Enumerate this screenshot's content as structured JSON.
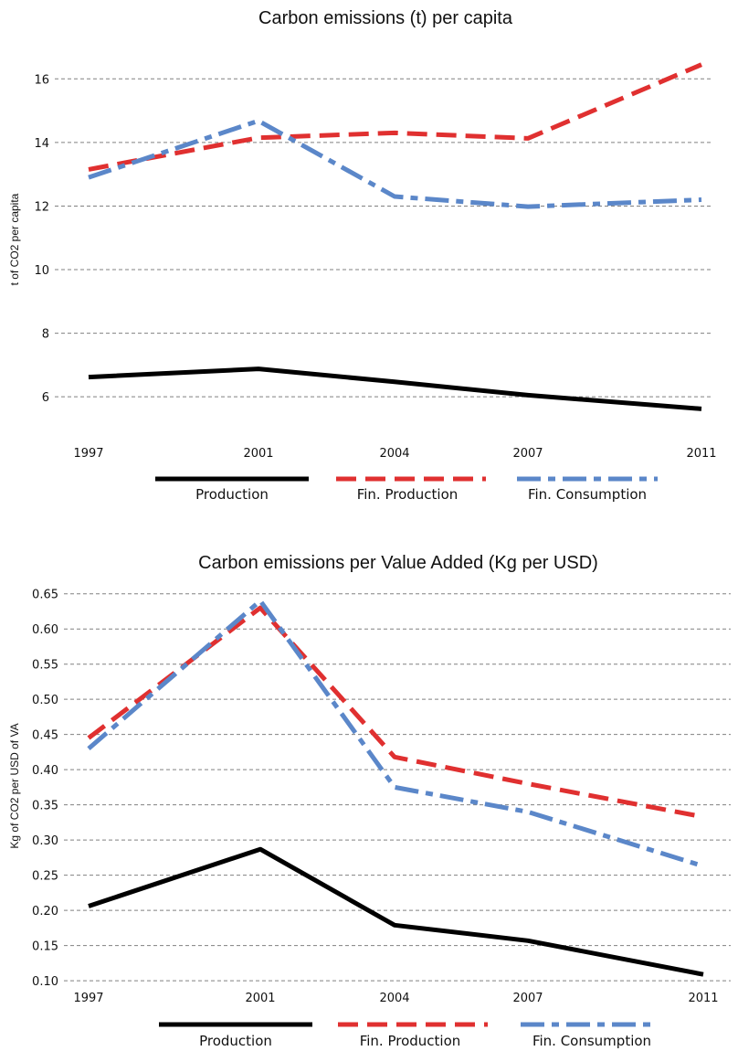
{
  "chart_data": [
    {
      "type": "line",
      "title": "Carbon emissions (t) per capita",
      "ylabel": "t of CO2 per capita",
      "xlabel": "",
      "x": [
        "1997",
        "2001",
        "2004",
        "2007",
        "2011"
      ],
      "ylim": [
        5.2,
        16.9
      ],
      "yticks": [
        "6",
        "8",
        "10",
        "12",
        "14",
        "16"
      ],
      "grid": true,
      "legend_position": "bottom",
      "series": [
        {
          "name": "Production",
          "values": [
            6.62,
            6.88,
            6.47,
            6.05,
            5.62
          ],
          "color": "#000000",
          "style": "solid"
        },
        {
          "name": "Fin. Production",
          "values": [
            13.15,
            14.15,
            14.3,
            14.13,
            16.45
          ],
          "color": "#e03030",
          "style": "dashed"
        },
        {
          "name": "Fin. Consumption",
          "values": [
            12.9,
            14.68,
            12.3,
            11.98,
            12.2
          ],
          "color": "#5b87c9",
          "style": "dashdot"
        }
      ]
    },
    {
      "type": "line",
      "title": "Carbon emissions per Value Added (Kg per USD)",
      "ylabel": "Kg of CO2 per USD of VA",
      "xlabel": "",
      "x": [
        "1997",
        "2001",
        "2004",
        "2007",
        "2011"
      ],
      "ylim": [
        0.095,
        0.66
      ],
      "yticks": [
        "0.10",
        "0.15",
        "0.20",
        "0.25",
        "0.30",
        "0.35",
        "0.40",
        "0.45",
        "0.50",
        "0.55",
        "0.60",
        "0.65"
      ],
      "grid": true,
      "legend_position": "bottom",
      "series": [
        {
          "name": "Production",
          "values": [
            0.206,
            0.287,
            0.179,
            0.157,
            0.109
          ],
          "color": "#000000",
          "style": "solid"
        },
        {
          "name": "Fin. Production",
          "values": [
            0.445,
            0.63,
            0.418,
            0.38,
            0.333
          ],
          "color": "#e03030",
          "style": "dashed"
        },
        {
          "name": "Fin. Consumption",
          "values": [
            0.43,
            0.64,
            0.375,
            0.34,
            0.263
          ],
          "color": "#5b87c9",
          "style": "dashdot"
        }
      ]
    }
  ]
}
